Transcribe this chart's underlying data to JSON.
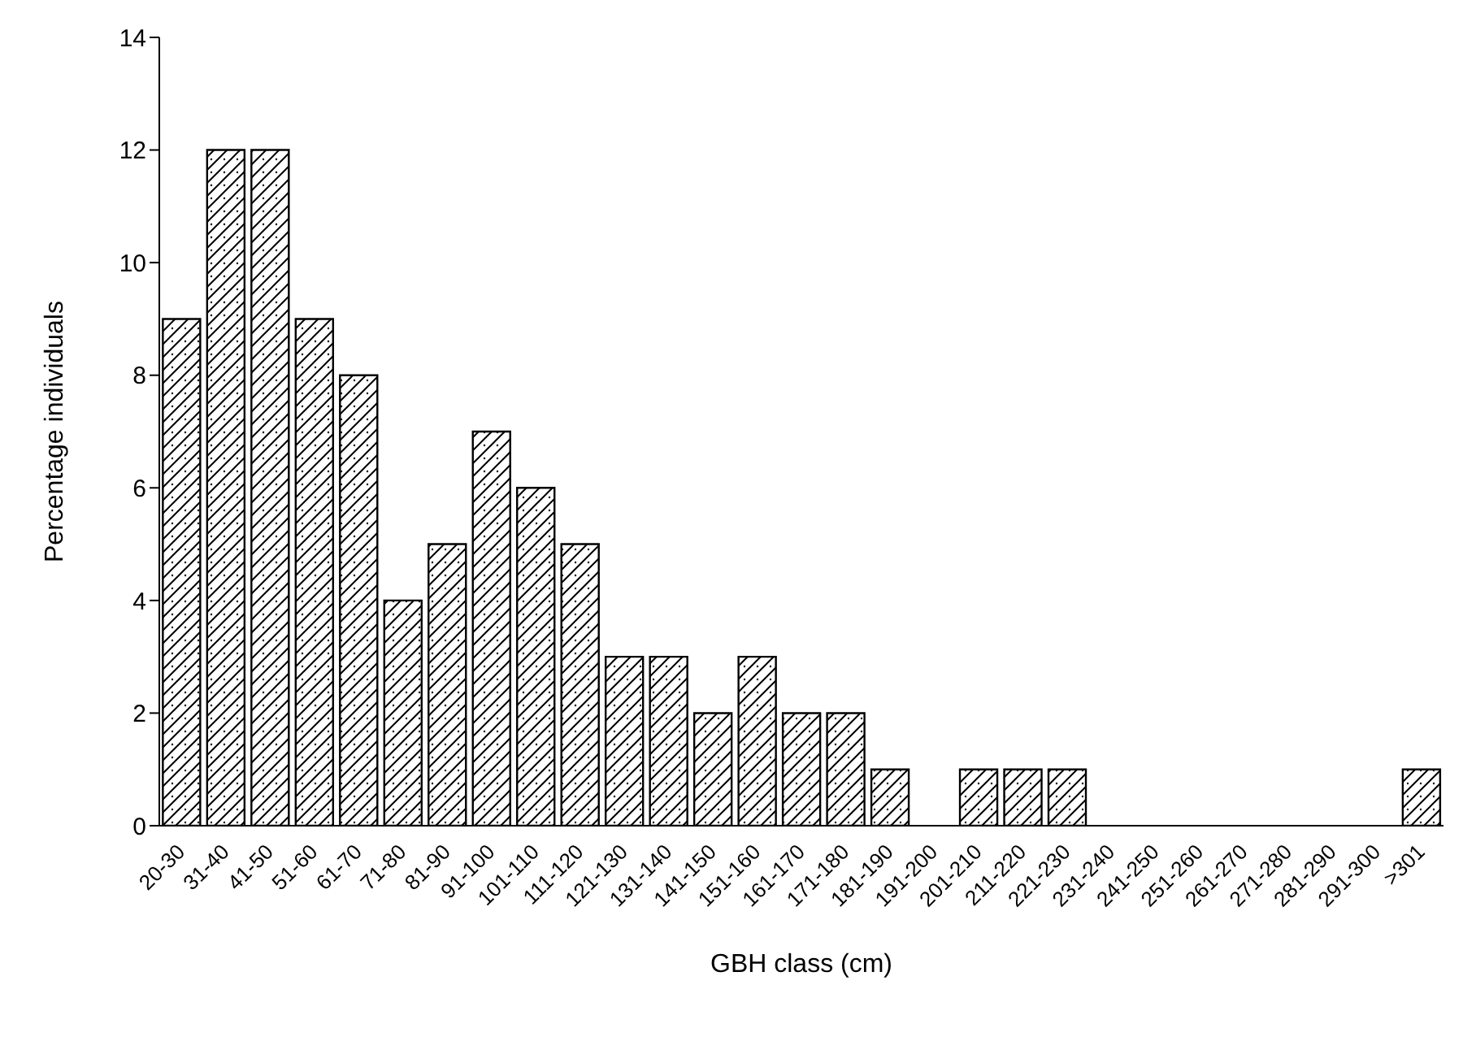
{
  "chart_data": {
    "type": "bar",
    "xlabel": "GBH class (cm)",
    "ylabel": "Percentage individuals",
    "categories": [
      "20-30",
      "31-40",
      "41-50",
      "51-60",
      "61-70",
      "71-80",
      "81-90",
      "91-100",
      "101-110",
      "111-120",
      "121-130",
      "131-140",
      "141-150",
      "151-160",
      "161-170",
      "171-180",
      "181-190",
      "191-200",
      "201-210",
      "211-220",
      "221-230",
      "231-240",
      "241-250",
      "251-260",
      "261-270",
      "271-280",
      "281-290",
      "291-300",
      ">301"
    ],
    "values": [
      9,
      12,
      12,
      9,
      8,
      4,
      5,
      7,
      6,
      5,
      3,
      3,
      2,
      3,
      2,
      2,
      1,
      0,
      1,
      1,
      1,
      0,
      0,
      0,
      0,
      0,
      0,
      0,
      1
    ],
    "color": "#000000",
    "ylim": [
      0,
      14
    ],
    "yticks": [
      0,
      2,
      4,
      6,
      8,
      10,
      12,
      14
    ],
    "grid": false,
    "legend": false
  }
}
